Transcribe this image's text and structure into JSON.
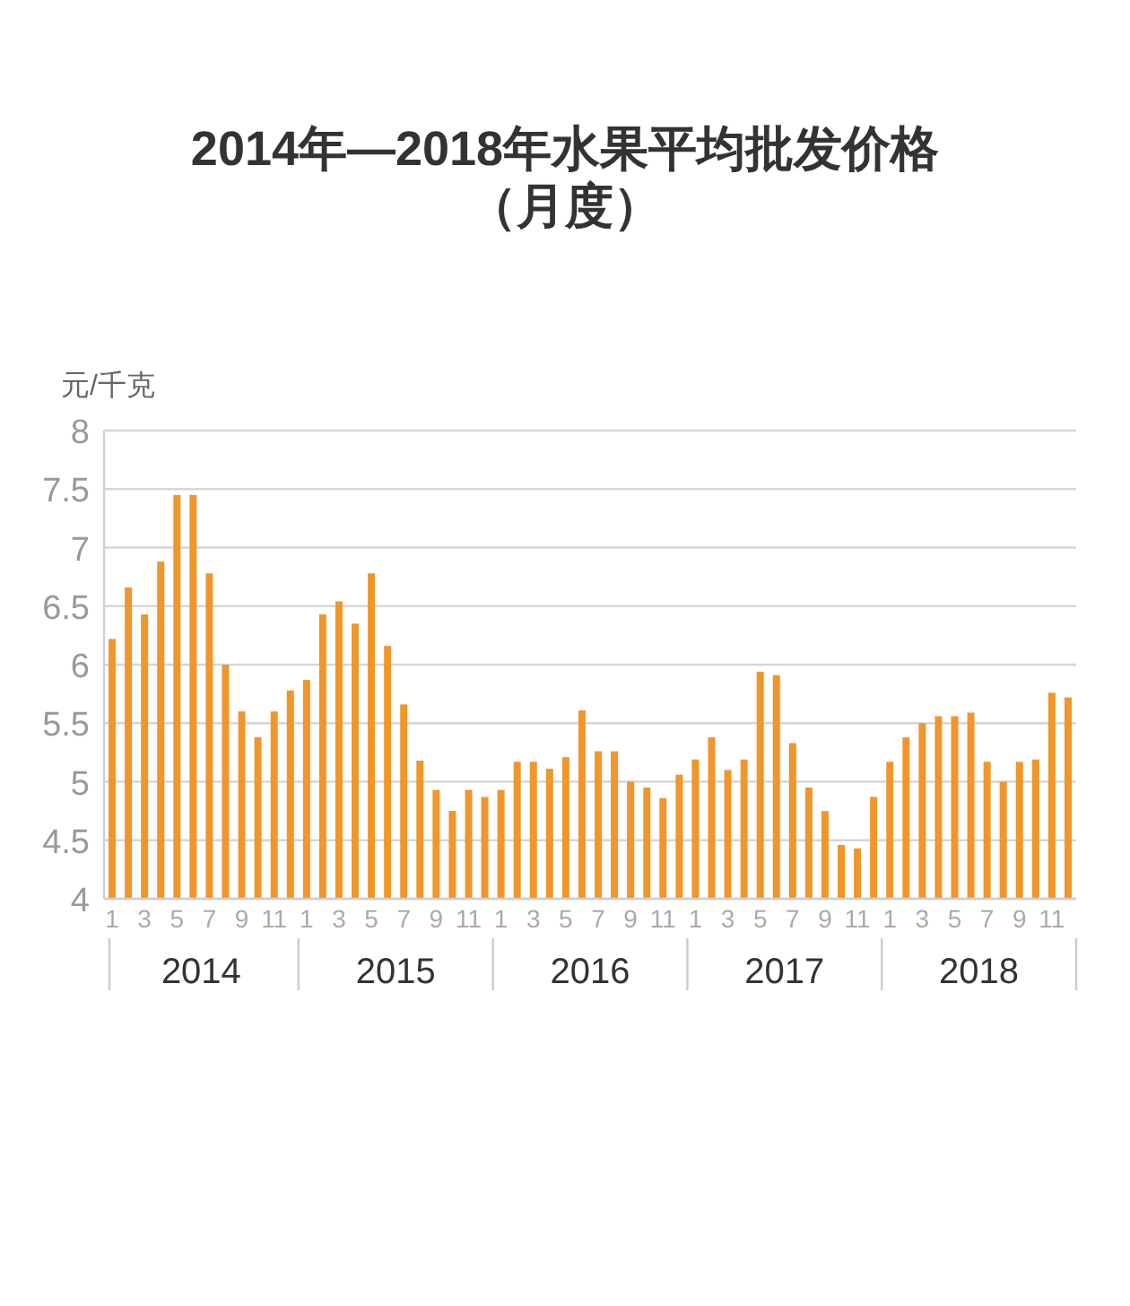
{
  "chart_data": {
    "type": "bar",
    "title": "2014年—2018年水果平均批发价格",
    "subtitle": "（月度）",
    "ylabel": "元/千克",
    "categories": [
      "1",
      null,
      "3",
      null,
      "5",
      null,
      "7",
      null,
      "9",
      null,
      "11",
      null,
      "1",
      null,
      "3",
      null,
      "5",
      null,
      "7",
      null,
      "9",
      null,
      "11",
      null,
      "1",
      null,
      "3",
      null,
      "5",
      null,
      "7",
      null,
      "9",
      null,
      "11",
      null,
      "1",
      null,
      "3",
      null,
      "5",
      null,
      "7",
      null,
      "9",
      null,
      "11",
      null,
      "1",
      null,
      "3",
      null,
      "5",
      null,
      "7",
      null,
      "9",
      null,
      "11",
      null
    ],
    "values": [
      6.22,
      6.66,
      6.43,
      6.88,
      7.45,
      7.45,
      6.78,
      6.0,
      5.6,
      5.38,
      5.6,
      5.78,
      5.87,
      6.43,
      6.54,
      6.35,
      6.78,
      6.16,
      5.66,
      5.18,
      4.93,
      4.75,
      4.93,
      4.87,
      4.93,
      5.17,
      5.17,
      5.11,
      5.21,
      5.61,
      5.26,
      5.26,
      5.0,
      4.95,
      4.86,
      5.06,
      5.19,
      5.38,
      5.1,
      5.19,
      5.94,
      5.91,
      5.33,
      4.95,
      4.75,
      4.46,
      4.43,
      4.87,
      5.17,
      5.38,
      5.5,
      5.56,
      5.56,
      5.59,
      5.17,
      5.0,
      5.17,
      5.19,
      5.76,
      5.72
    ],
    "color": "#f0962a",
    "ylim": [
      4,
      8
    ],
    "yticks": [
      4,
      4.5,
      5,
      5.5,
      6,
      6.5,
      7,
      7.5,
      8
    ],
    "grid": "y",
    "annotations": [
      "2014",
      "2015",
      "2016",
      "2017",
      "2018"
    ]
  }
}
